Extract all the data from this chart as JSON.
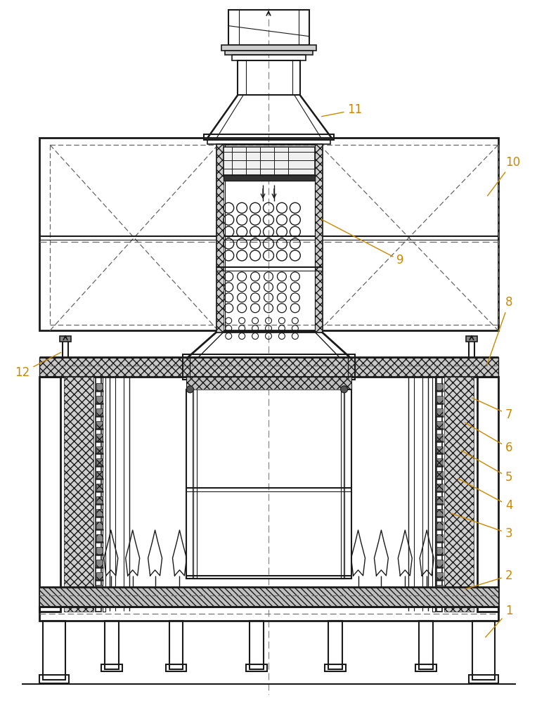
{
  "fig_width": 7.64,
  "fig_height": 10.0,
  "dpi": 100,
  "bg_color": "#ffffff",
  "lc": "#1a1a1a",
  "dc": "#666666",
  "label_color": "#cc8800",
  "label_fs": 12
}
